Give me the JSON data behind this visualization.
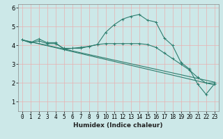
{
  "xlabel": "Humidex (Indice chaleur)",
  "ylabel": "",
  "bg_color": "#cce8e8",
  "grid_color_h": "#f0a0a0",
  "grid_color_v": "#f0a0a0",
  "line_color": "#2e7d6e",
  "xlim": [
    -0.5,
    23.5
  ],
  "ylim": [
    0.5,
    6.2
  ],
  "yticks": [
    1,
    2,
    3,
    4,
    5,
    6
  ],
  "xticks": [
    0,
    1,
    2,
    3,
    4,
    5,
    6,
    7,
    8,
    9,
    10,
    11,
    12,
    13,
    14,
    15,
    16,
    17,
    18,
    19,
    20,
    21,
    22,
    23
  ],
  "line1_x": [
    0,
    1,
    2,
    3,
    4,
    5,
    6,
    7,
    8,
    9,
    10,
    11,
    12,
    13,
    14,
    15,
    16,
    17,
    18,
    19,
    20,
    21,
    22,
    23
  ],
  "line1_y": [
    4.3,
    4.15,
    4.35,
    4.15,
    4.15,
    3.8,
    3.85,
    3.85,
    3.95,
    4.05,
    4.7,
    5.1,
    5.4,
    5.55,
    5.65,
    5.35,
    5.25,
    4.4,
    4.0,
    3.1,
    2.75,
    1.95,
    1.4,
    1.95
  ],
  "line2_x": [
    0,
    1,
    2,
    3,
    4,
    5,
    6,
    7,
    8,
    9,
    10,
    11,
    12,
    13,
    14,
    15,
    16,
    17,
    18,
    19,
    20,
    21,
    22,
    23
  ],
  "line2_y": [
    4.3,
    4.15,
    4.25,
    4.1,
    4.1,
    3.85,
    3.85,
    3.9,
    3.95,
    4.05,
    4.1,
    4.1,
    4.1,
    4.1,
    4.1,
    4.05,
    3.9,
    3.6,
    3.3,
    3.0,
    2.7,
    2.3,
    2.0,
    2.0
  ],
  "line3_x": [
    0,
    23
  ],
  "line3_y": [
    4.3,
    2.05
  ],
  "line4_x": [
    0,
    23
  ],
  "line4_y": [
    4.3,
    1.9
  ]
}
